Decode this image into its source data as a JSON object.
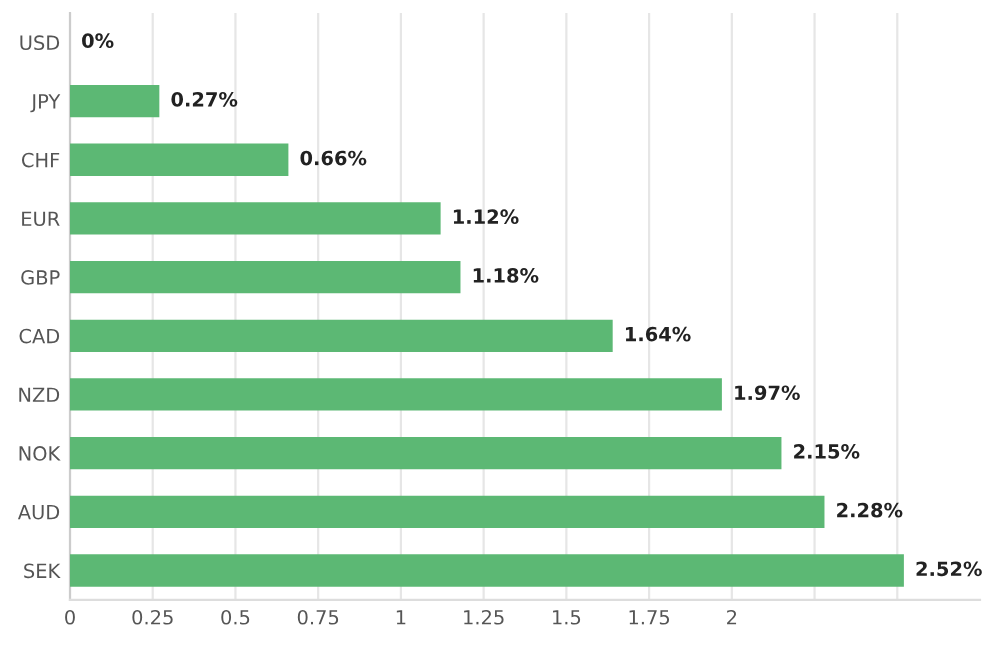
{
  "chart_data": {
    "type": "bar",
    "orientation": "horizontal",
    "categories": [
      "USD",
      "JPY",
      "CHF",
      "EUR",
      "GBP",
      "CAD",
      "NZD",
      "NOK",
      "AUD",
      "SEK"
    ],
    "values": [
      0,
      0.27,
      0.66,
      1.12,
      1.18,
      1.64,
      1.97,
      2.15,
      2.28,
      2.52
    ],
    "value_labels": [
      "0%",
      "0.27%",
      "0.66%",
      "1.12%",
      "1.18%",
      "1.64%",
      "1.97%",
      "2.15%",
      "2.28%",
      "2.52%"
    ],
    "color": "#5cb874",
    "xlim": [
      0,
      2.75
    ],
    "xticks": [
      0,
      0.25,
      0.5,
      0.75,
      1,
      1.25,
      1.5,
      1.75,
      2,
      {
        "value": 2.25,
        "label": null
      },
      {
        "value": 2.5,
        "label": null
      }
    ],
    "grid": "x"
  }
}
